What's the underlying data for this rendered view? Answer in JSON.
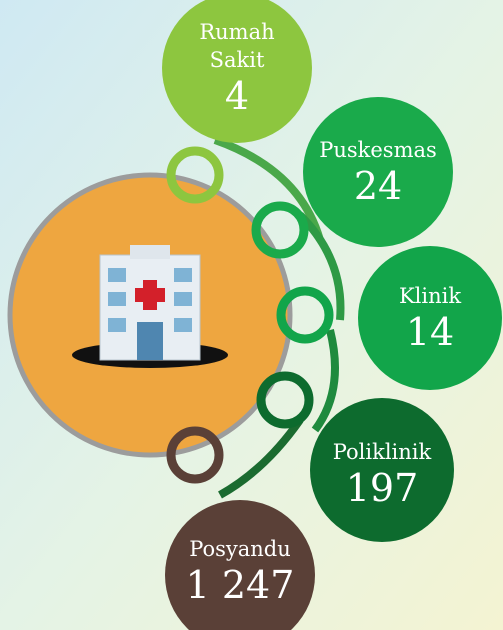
{
  "nodes": [
    {
      "label": "Rumah Sakit",
      "value": "4"
    },
    {
      "label": "Puskesmas",
      "value": "24"
    },
    {
      "label": "Klinik",
      "value": "14"
    },
    {
      "label": "Poliklinik",
      "value": "197"
    },
    {
      "label": "Posyandu",
      "value": "1 247"
    }
  ]
}
